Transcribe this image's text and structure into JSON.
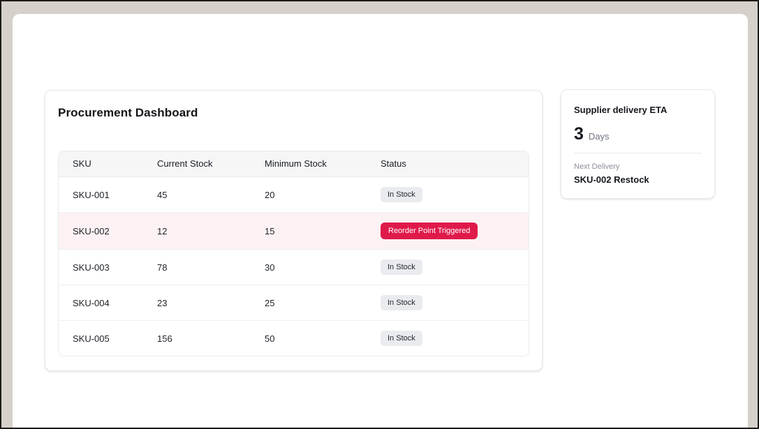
{
  "frame": {
    "background_color": "#d5d1ca",
    "border_color": "#1c1b1a",
    "panel_color": "#ffffff"
  },
  "dashboard": {
    "title": "Procurement Dashboard",
    "table": {
      "columns": [
        "SKU",
        "Current Stock",
        "Minimum Stock",
        "Status"
      ],
      "rows": [
        {
          "sku": "SKU-001",
          "current_stock": "45",
          "minimum_stock": "20",
          "status": "In Stock",
          "alert": false
        },
        {
          "sku": "SKU-002",
          "current_stock": "12",
          "minimum_stock": "15",
          "status": "Reorder Point Triggered",
          "alert": true
        },
        {
          "sku": "SKU-003",
          "current_stock": "78",
          "minimum_stock": "30",
          "status": "In Stock",
          "alert": false
        },
        {
          "sku": "SKU-004",
          "current_stock": "23",
          "minimum_stock": "25",
          "status": "In Stock",
          "alert": false
        },
        {
          "sku": "SKU-005",
          "current_stock": "156",
          "minimum_stock": "50",
          "status": "In Stock",
          "alert": false
        }
      ]
    }
  },
  "eta_card": {
    "title": "Supplier delivery ETA",
    "value": "3",
    "unit": "Days",
    "next_delivery_label": "Next Delivery",
    "next_delivery_value": "SKU-002 Restock"
  },
  "colors": {
    "danger_badge": "#df1a4b",
    "danger_row_background": "#fdf2f3",
    "neutral_badge_background": "#e9ebee",
    "table_header_background": "#f6f6f7",
    "text_primary": "#14171c",
    "text_muted": "#6f7480"
  }
}
